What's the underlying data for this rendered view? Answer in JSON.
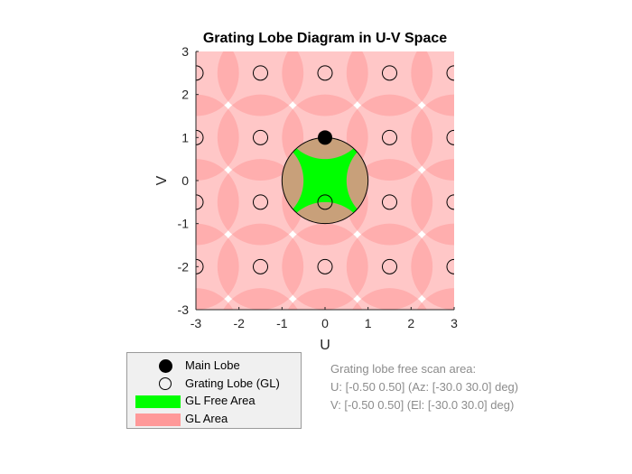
{
  "chart_data": {
    "type": "scatter",
    "title": "Grating Lobe Diagram in U-V Space",
    "xlabel": "U",
    "ylabel": "V",
    "xlim": [
      -3,
      3
    ],
    "ylim": [
      -3,
      3
    ],
    "xticks": [
      "-3",
      "-2",
      "-1",
      "0",
      "1",
      "2",
      "3"
    ],
    "yticks": [
      "3",
      "2",
      "1",
      "0",
      "-1",
      "-2",
      "-3"
    ],
    "grid": false,
    "visible_region_radius": 1,
    "main_lobe": {
      "u": 0,
      "v": 1
    },
    "grating_lobe_u": [
      -3,
      -1.5,
      0,
      1.5,
      3
    ],
    "grating_lobe_v": [
      2.5,
      1,
      -0.5,
      -2
    ],
    "legend_position": "bottom-left",
    "series": [
      {
        "name": "Main Lobe",
        "x": [
          0
        ],
        "y": [
          1
        ]
      },
      {
        "name": "Grating Lobe (GL)",
        "x": [
          -3,
          -1.5,
          0,
          1.5,
          3,
          -3,
          -1.5,
          1.5,
          3,
          -3,
          -1.5,
          0,
          1.5,
          3,
          -3,
          -1.5,
          0,
          1.5,
          3
        ],
        "y": [
          2.5,
          2.5,
          2.5,
          2.5,
          2.5,
          1,
          1,
          1,
          1,
          -0.5,
          -0.5,
          -0.5,
          -0.5,
          -0.5,
          -2,
          -2,
          -2,
          -2,
          -2
        ]
      },
      {
        "name": "GL Free Area"
      },
      {
        "name": "GL Area"
      }
    ],
    "annotation": [
      "Grating lobe free scan area:",
      "U: [-0.50 0.50] (Az: [-30.0 30.0] deg)",
      "V: [-0.50 0.50] (El: [-30.0 30.0] deg)"
    ]
  },
  "colors": {
    "gl_area": "#ff9999",
    "gl_free": "#00ff00",
    "visible_region": "#c8a07a",
    "text": "#262626",
    "annotation": "#8c8c8c"
  }
}
